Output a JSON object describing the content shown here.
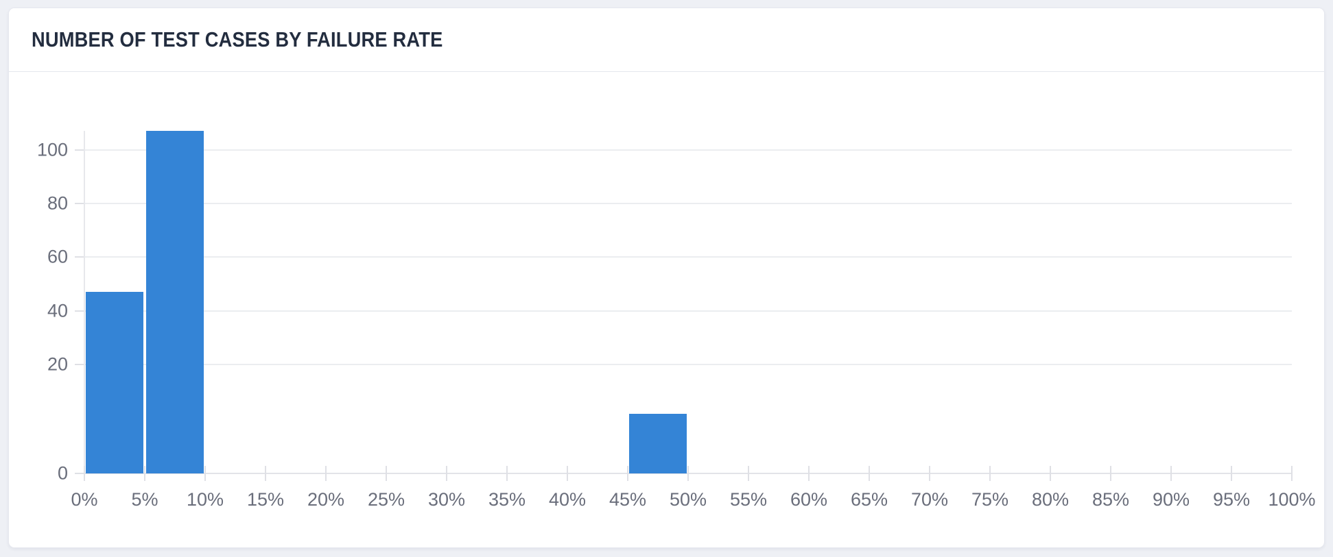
{
  "card": {
    "title": "NUMBER OF TEST CASES BY FAILURE RATE"
  },
  "colors": {
    "bar": "#3484d6",
    "page_background": "#eef0f5",
    "card_background": "#ffffff",
    "title_text": "#232d3f",
    "axis_text": "#6a6e7b",
    "gridline": "#ebedf0"
  },
  "chart_data": {
    "type": "bar",
    "title": "NUMBER OF TEST CASES BY FAILURE RATE",
    "xlabel": "",
    "ylabel": "",
    "categories": [
      "0-5%",
      "5-10%",
      "10-15%",
      "15-20%",
      "20-25%",
      "25-30%",
      "30-35%",
      "35-40%",
      "40-45%",
      "45-50%",
      "50-55%",
      "55-60%",
      "60-65%",
      "65-70%",
      "70-75%",
      "75-80%",
      "80-85%",
      "85-90%",
      "90-95%",
      "95-100%"
    ],
    "values": [
      47,
      107,
      0,
      0,
      0,
      0,
      0,
      0,
      0,
      11,
      0,
      0,
      0,
      0,
      0,
      0,
      0,
      0,
      0,
      0
    ],
    "x_tick_labels": [
      "0%",
      "5%",
      "10%",
      "15%",
      "20%",
      "25%",
      "30%",
      "35%",
      "40%",
      "45%",
      "50%",
      "55%",
      "60%",
      "65%",
      "70%",
      "75%",
      "80%",
      "85%",
      "90%",
      "95%",
      "100%"
    ],
    "y_ticks": [
      0,
      20,
      40,
      60,
      80,
      100
    ],
    "y_tick_labels": [
      "0",
      "20",
      "40",
      "60",
      "80",
      "100"
    ],
    "ylim": [
      0,
      107
    ],
    "grid": "horizontal",
    "legend": "none",
    "bar_color": "#3484d6"
  }
}
